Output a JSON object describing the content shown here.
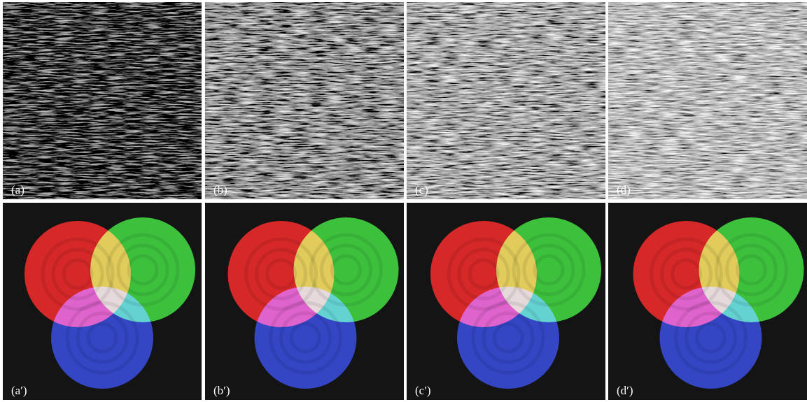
{
  "panels": [
    {
      "label": "(a)"
    },
    {
      "label": "(b)"
    },
    {
      "label": "(c)"
    },
    {
      "label": "(d)"
    },
    {
      "label": "(a′)"
    },
    {
      "label": "(b′)"
    },
    {
      "label": "(c′)"
    },
    {
      "label": "(d′)"
    }
  ]
}
